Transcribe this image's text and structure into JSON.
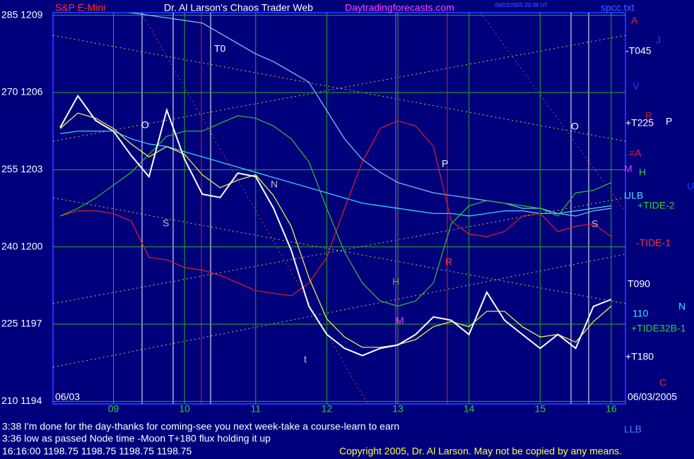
{
  "chart_data": {
    "type": "line",
    "title": "Dr. Al Larson's Chaos Trader Web",
    "instrument": "S&P E-Mini",
    "site": "Daytradingforecasts.com",
    "file": "spcc.txt",
    "timestamp": "06/03/2005 20:38 UT",
    "date_label": "06/03",
    "x": [
      8.25,
      8.5,
      8.75,
      9,
      9.25,
      9.5,
      9.75,
      10,
      10.25,
      10.5,
      10.75,
      11,
      11.25,
      11.5,
      11.75,
      12,
      12.25,
      12.5,
      12.75,
      13,
      13.25,
      13.5,
      13.75,
      14,
      14.25,
      14.5,
      14.75,
      15,
      15.25,
      15.5,
      15.75,
      16
    ],
    "xlim": [
      8.15,
      16.2
    ],
    "xticks": [
      {
        "value": 9,
        "label": "09"
      },
      10,
      11,
      12,
      13,
      14,
      15,
      16
    ],
    "ylim": [
      1193.9,
      1209.1
    ],
    "yticks": [
      {
        "value": 1209,
        "label": "285 1209"
      },
      {
        "value": 1206,
        "label": "270 1206"
      },
      {
        "value": 1203,
        "label": "255 1203"
      },
      {
        "value": 1200,
        "label": "240 1200"
      },
      {
        "value": 1197,
        "label": "225 1197"
      },
      {
        "value": 1194,
        "label": "210 1194"
      }
    ],
    "grid": true,
    "series": [
      {
        "color": "#7ec8f0",
        "values": [
          1209.2,
          1209.2,
          1209.2,
          1209.2,
          1209.1,
          1209.0,
          1208.9,
          1208.8,
          1208.7,
          1208.3,
          1207.9,
          1207.5,
          1207.2,
          1206.8,
          1206.4,
          1205.3,
          1204.2,
          1203.4,
          1202.9,
          1202.5,
          1202.3,
          1202.1,
          1202.0,
          1201.9,
          1201.8,
          1201.7,
          1201.5,
          1201.5,
          1201.3,
          1201.2,
          1201.4,
          1201.5
        ]
      },
      {
        "color": "#40e0ff",
        "values": [
          1204.4,
          1204.5,
          1204.5,
          1204.5,
          1204.2,
          1204.0,
          1203.9,
          1203.7,
          1203.5,
          1203.3,
          1203.1,
          1202.9,
          1202.7,
          1202.5,
          1202.3,
          1202.1,
          1201.9,
          1201.7,
          1201.6,
          1201.5,
          1201.4,
          1201.3,
          1201.3,
          1201.2,
          1201.3,
          1201.4,
          1201.4,
          1201.3,
          1201.3,
          1201.4,
          1201.5,
          1201.6
        ]
      },
      {
        "color": "#e02020",
        "values": [
          1201.2,
          1201.4,
          1201.4,
          1201.3,
          1201.0,
          1199.6,
          1199.5,
          1199.2,
          1199.1,
          1198.9,
          1198.6,
          1198.3,
          1198.2,
          1198.1,
          1198.6,
          1199.6,
          1201.5,
          1203.3,
          1204.6,
          1204.9,
          1204.7,
          1203.9,
          1201.0,
          1200.5,
          1200.4,
          1200.6,
          1201.2,
          1201.3,
          1200.6,
          1200.8,
          1200.9,
          1200.4
        ]
      },
      {
        "color": "#30c030",
        "values": [
          1201.2,
          1201.5,
          1201.9,
          1202.4,
          1202.9,
          1203.6,
          1204.3,
          1204.5,
          1204.5,
          1204.8,
          1205.1,
          1205.0,
          1204.7,
          1204.2,
          1203.3,
          1201.5,
          1199.8,
          1198.6,
          1197.9,
          1197.7,
          1197.9,
          1198.6,
          1200.9,
          1201.6,
          1201.8,
          1201.7,
          1201.6,
          1201.5,
          1201.2,
          1202.1,
          1202.2,
          1202.5
        ]
      },
      {
        "color": "#ffff40",
        "values": [
          1204.6,
          1205.2,
          1205.0,
          1204.6,
          1204.0,
          1203.5,
          1203.9,
          1203.6,
          1202.8,
          1202.3,
          1202.6,
          1202.8,
          1202.0,
          1200.8,
          1198.8,
          1197.2,
          1196.5,
          1196.1,
          1196.1,
          1196.2,
          1196.4,
          1196.9,
          1197.1,
          1196.9,
          1197.5,
          1197.5,
          1196.9,
          1196.5,
          1196.6,
          1196.3,
          1197.1,
          1197.7
        ]
      },
      {
        "color": "#ffffff",
        "values": [
          1204.64,
          1205.87,
          1204.91,
          1204.5,
          1203.55,
          1202.73,
          1205.32,
          1203.41,
          1202.05,
          1201.92,
          1202.87,
          1202.73,
          1201.51,
          1199.87,
          1197.69,
          1196.6,
          1196.06,
          1195.78,
          1196.06,
          1196.19,
          1196.6,
          1197.28,
          1197.15,
          1196.6,
          1198.24,
          1197.15,
          1196.6,
          1196.06,
          1196.6,
          1196.06,
          1197.69,
          1197.96
        ]
      }
    ],
    "annotations": [
      {
        "text": "A",
        "color": "#ff2020"
      },
      {
        "text": "J",
        "color": "#2040ff"
      },
      {
        "text": "-T045",
        "color": "#ffffff"
      },
      {
        "text": "V",
        "color": "#2040ff"
      },
      {
        "text": "R",
        "color": "#c02020"
      },
      {
        "text": "+T225",
        "color": "#ffffff"
      },
      {
        "text": "P",
        "color": "#ffffff"
      },
      {
        "text": "=A",
        "color": "#ff2020"
      },
      {
        "text": "M",
        "color": "#e040e0"
      },
      {
        "text": "H",
        "color": "#30d030"
      },
      {
        "text": "U",
        "color": "#2040ff"
      },
      {
        "text": "ULB",
        "color": "#40e0ff"
      },
      {
        "text": "+TIDE-2",
        "color": "#30d030"
      },
      {
        "text": "-TIDE-1",
        "color": "#ff3030"
      },
      {
        "text": "T090",
        "color": "#ffffff"
      },
      {
        "text": "110",
        "color": "#40e0ff"
      },
      {
        "text": "N",
        "color": "#40e0ff"
      },
      {
        "text": "+TIDE32B-1",
        "color": "#30d030"
      },
      {
        "text": "+T180",
        "color": "#ffffff"
      },
      {
        "text": "C",
        "color": "#ff2020"
      },
      {
        "text": "06/03/2005",
        "color": "#ffffff"
      },
      {
        "text": "LLB",
        "color": "#4080ff"
      },
      {
        "text": "T0",
        "color": "#ffffff"
      },
      {
        "text": "O",
        "color": "#ffffff"
      },
      {
        "text": "S",
        "color": "#c0c0c0"
      },
      {
        "text": "N",
        "color": "#c0c0c0"
      },
      {
        "text": "t",
        "color": "#c0c0c0"
      },
      {
        "text": "M",
        "color": "#e040e0"
      },
      {
        "text": "H",
        "color": "#30d030"
      },
      {
        "text": "P",
        "color": "#ffffff"
      },
      {
        "text": "R",
        "color": "#ff3030"
      },
      {
        "text": "O",
        "color": "#ffffff"
      },
      {
        "text": "S",
        "color": "#c0c0c0"
      }
    ],
    "messages": [
      "3:38 I'm done for the day-thanks for coming-see you next week-take a course-learn to earn",
      "3:36 low as passed Node time -Moon T+180 flux holding it up",
      "16:16:00 1198.75 1198.75 1198.75 1198.75"
    ],
    "copyright": "Copyright 2005, Dr. Al Larson. May not be copied by any means."
  }
}
